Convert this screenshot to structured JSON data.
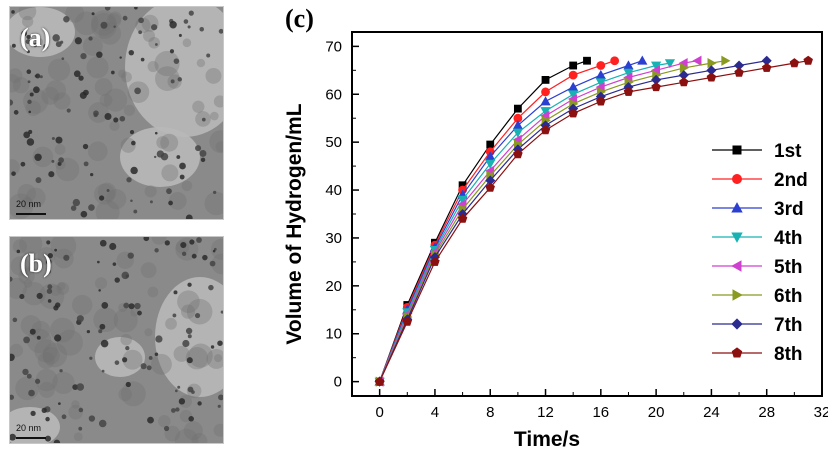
{
  "panels": [
    {
      "label": "(a)",
      "scale": "20 nm"
    },
    {
      "label": "(b)",
      "scale": "20 nm"
    }
  ],
  "chart_label": "(c)",
  "chart_data": {
    "type": "line",
    "title": "",
    "xlabel": "Time/s",
    "ylabel": "Volume of Hydrogen/mL",
    "xlim": [
      -2,
      32
    ],
    "ylim": [
      -3,
      73
    ],
    "xticks": [
      0,
      4,
      8,
      12,
      16,
      20,
      24,
      28,
      32
    ],
    "yticks": [
      0,
      10,
      20,
      30,
      40,
      50,
      60,
      70
    ],
    "grid": false,
    "legend_position": "right",
    "series": [
      {
        "name": "1st",
        "color": "#000000",
        "marker": "square",
        "x": [
          0,
          2,
          4,
          6,
          8,
          10,
          12,
          14,
          15
        ],
        "y": [
          0,
          16,
          29,
          41,
          49.5,
          57,
          63,
          66,
          67
        ]
      },
      {
        "name": "2nd",
        "color": "#ff2020",
        "marker": "circle",
        "x": [
          0,
          2,
          4,
          6,
          8,
          10,
          12,
          14,
          16,
          17
        ],
        "y": [
          0,
          15.5,
          28.5,
          40,
          48,
          55,
          60.5,
          64,
          66,
          67
        ]
      },
      {
        "name": "3rd",
        "color": "#2b3fd0",
        "marker": "triangle-up",
        "x": [
          0,
          2,
          4,
          6,
          8,
          10,
          12,
          14,
          16,
          18,
          19
        ],
        "y": [
          0,
          15,
          28,
          39,
          47,
          53.5,
          58.5,
          61.5,
          64,
          66,
          67
        ]
      },
      {
        "name": "4th",
        "color": "#18b2b2",
        "marker": "triangle-down",
        "x": [
          0,
          2,
          4,
          6,
          8,
          10,
          12,
          14,
          16,
          18,
          20,
          21
        ],
        "y": [
          0,
          14.5,
          27.5,
          38,
          45.5,
          52,
          56.5,
          60,
          62.5,
          64.5,
          66,
          66.5
        ]
      },
      {
        "name": "5th",
        "color": "#d040d0",
        "marker": "triangle-left",
        "x": [
          0,
          2,
          4,
          6,
          8,
          10,
          12,
          14,
          16,
          18,
          20,
          22,
          23
        ],
        "y": [
          0,
          14,
          27,
          37,
          44,
          50.5,
          55.5,
          59,
          61.5,
          63.5,
          65,
          66.5,
          67
        ]
      },
      {
        "name": "6th",
        "color": "#8a9a20",
        "marker": "triangle-right",
        "x": [
          0,
          2,
          4,
          6,
          8,
          10,
          12,
          14,
          16,
          18,
          20,
          22,
          24,
          25
        ],
        "y": [
          0,
          13.5,
          26.5,
          36,
          43,
          49.5,
          54.5,
          58,
          60.5,
          62.5,
          64,
          65.5,
          66.5,
          67
        ]
      },
      {
        "name": "7th",
        "color": "#2b2b8f",
        "marker": "diamond",
        "x": [
          0,
          2,
          4,
          6,
          8,
          10,
          12,
          14,
          16,
          18,
          20,
          22,
          24,
          26,
          28
        ],
        "y": [
          0,
          13,
          26,
          35,
          42,
          48.5,
          53.5,
          57,
          59.5,
          61.5,
          63,
          64,
          65,
          66,
          67
        ]
      },
      {
        "name": "8th",
        "color": "#8b1010",
        "marker": "pentagon",
        "x": [
          0,
          2,
          4,
          6,
          8,
          10,
          12,
          14,
          16,
          18,
          20,
          22,
          24,
          26,
          28,
          30,
          31
        ],
        "y": [
          0,
          12.5,
          25,
          34,
          40.5,
          47.5,
          52.5,
          56,
          58.5,
          60.5,
          61.5,
          62.5,
          63.5,
          64.5,
          65.5,
          66.5,
          67
        ]
      }
    ]
  }
}
